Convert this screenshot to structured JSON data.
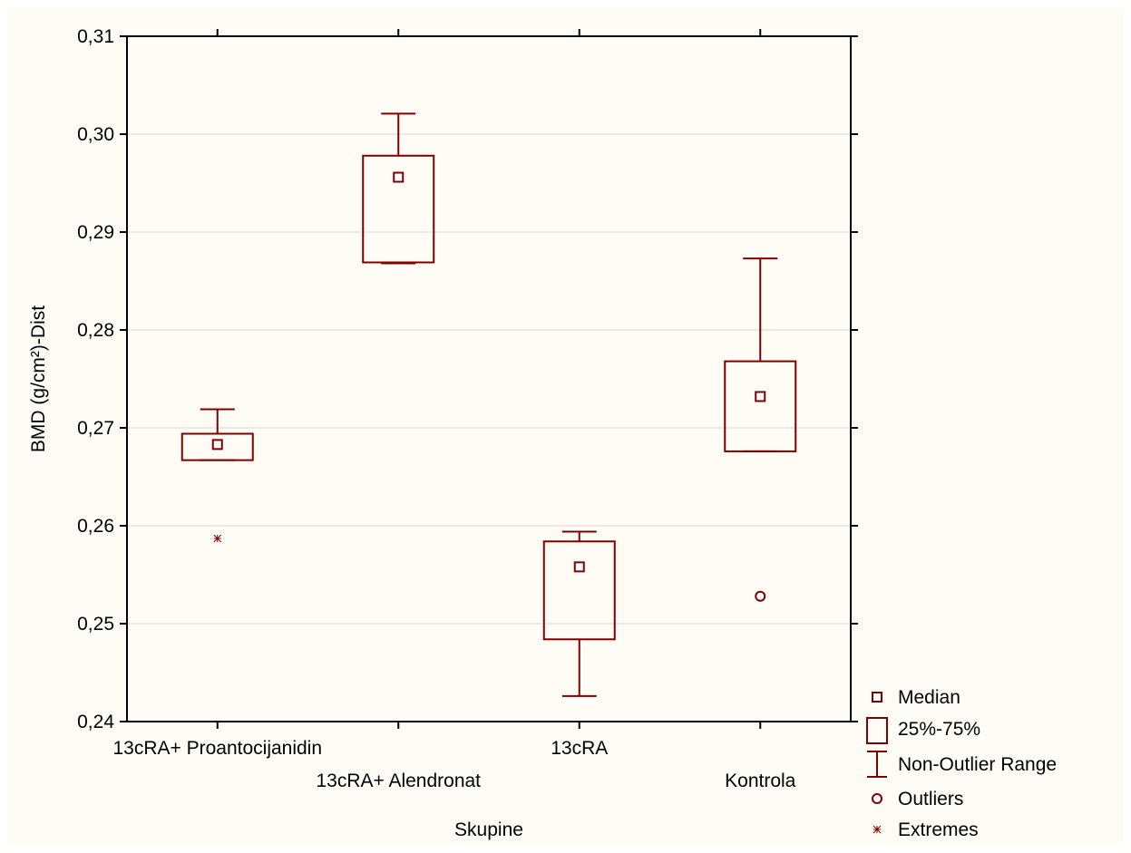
{
  "chart_data": {
    "type": "boxplot",
    "title": "",
    "xlabel": "Skupine",
    "ylabel": "BMD (g/cm²)-Dist",
    "ylim": [
      0.24,
      0.31
    ],
    "yticks": [
      "0,24",
      "0,25",
      "0,26",
      "0,27",
      "0,28",
      "0,29",
      "0,30",
      "0,31"
    ],
    "grid": true,
    "color": "#7f0000",
    "categories": [
      "13cRA+ Proantocijanidin",
      "13cRA+ Alendronat",
      "13cRA",
      "Kontrola"
    ],
    "groups": [
      {
        "name": "13cRA+ Proantocijanidin",
        "median": 0.2683,
        "q1": 0.2667,
        "q3": 0.2694,
        "whisker_low": 0.2667,
        "whisker_high": 0.2719,
        "outliers": [],
        "extremes": [
          0.2587
        ]
      },
      {
        "name": "13cRA+ Alendronat",
        "median": 0.2956,
        "q1": 0.2869,
        "q3": 0.2978,
        "whisker_low": 0.2868,
        "whisker_high": 0.3021,
        "outliers": [],
        "extremes": []
      },
      {
        "name": "13cRA",
        "median": 0.2558,
        "q1": 0.2484,
        "q3": 0.2584,
        "whisker_low": 0.2426,
        "whisker_high": 0.2594,
        "outliers": [],
        "extremes": []
      },
      {
        "name": "Kontrola",
        "median": 0.2732,
        "q1": 0.2676,
        "q3": 0.2768,
        "whisker_low": 0.2676,
        "whisker_high": 0.2873,
        "outliers": [
          0.2528
        ],
        "extremes": []
      }
    ],
    "legend": {
      "position": "bottom-right",
      "items": [
        "Median",
        "25%-75%",
        "Non-Outlier Range",
        "Outliers",
        "Extremes"
      ]
    }
  }
}
